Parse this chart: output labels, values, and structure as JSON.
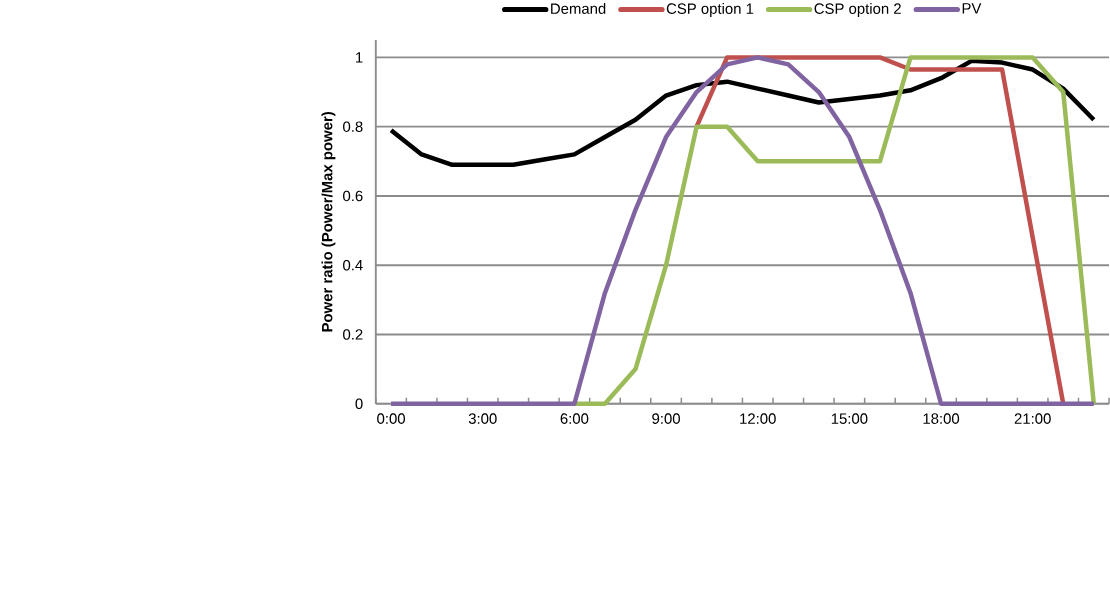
{
  "chart_data": {
    "type": "line",
    "ylabel": "Power ratio (Power/Max power)",
    "categories": [
      "0:00",
      null,
      null,
      "3:00",
      null,
      null,
      "6:00",
      null,
      null,
      "9:00",
      null,
      null,
      "12:00",
      null,
      null,
      "15:00",
      null,
      null,
      "18:00",
      null,
      null,
      "21:00",
      null,
      null
    ],
    "series": [
      {
        "name": "Demand",
        "color": "#000000",
        "values": [
          0.79,
          0.72,
          0.69,
          0.69,
          0.69,
          0.705,
          0.72,
          0.77,
          0.82,
          0.89,
          0.92,
          0.93,
          0.91,
          0.89,
          0.87,
          0.88,
          0.89,
          0.905,
          0.94,
          0.99,
          0.985,
          0.965,
          0.91,
          0.82
        ]
      },
      {
        "name": "CSP option 1",
        "color": "#c0504d",
        "values": [
          null,
          null,
          null,
          null,
          null,
          null,
          null,
          null,
          null,
          null,
          0.8,
          1,
          1,
          1,
          1,
          1,
          1,
          0.965,
          0.965,
          0.965,
          0.965,
          0.48,
          0,
          null
        ]
      },
      {
        "name": "CSP option 2",
        "color": "#9bbb59",
        "values": [
          null,
          null,
          null,
          null,
          null,
          null,
          0,
          0,
          0.1,
          0.4,
          0.8,
          0.8,
          0.7,
          0.7,
          0.7,
          0.7,
          0.7,
          1,
          1,
          1,
          1,
          1,
          0.9,
          0
        ]
      },
      {
        "name": "PV",
        "color": "#8064a2",
        "values": [
          0,
          0,
          0,
          0,
          0,
          0,
          0,
          0.32,
          0.56,
          0.77,
          0.9,
          0.98,
          1,
          0.98,
          0.9,
          0.77,
          0.56,
          0.32,
          0,
          0,
          0,
          0,
          0,
          0
        ]
      }
    ],
    "ylim": [
      0,
      1.05
    ],
    "yticks": [
      0,
      0.2,
      0.4,
      0.6,
      0.8,
      1
    ],
    "grid": "y",
    "legend": "top"
  }
}
